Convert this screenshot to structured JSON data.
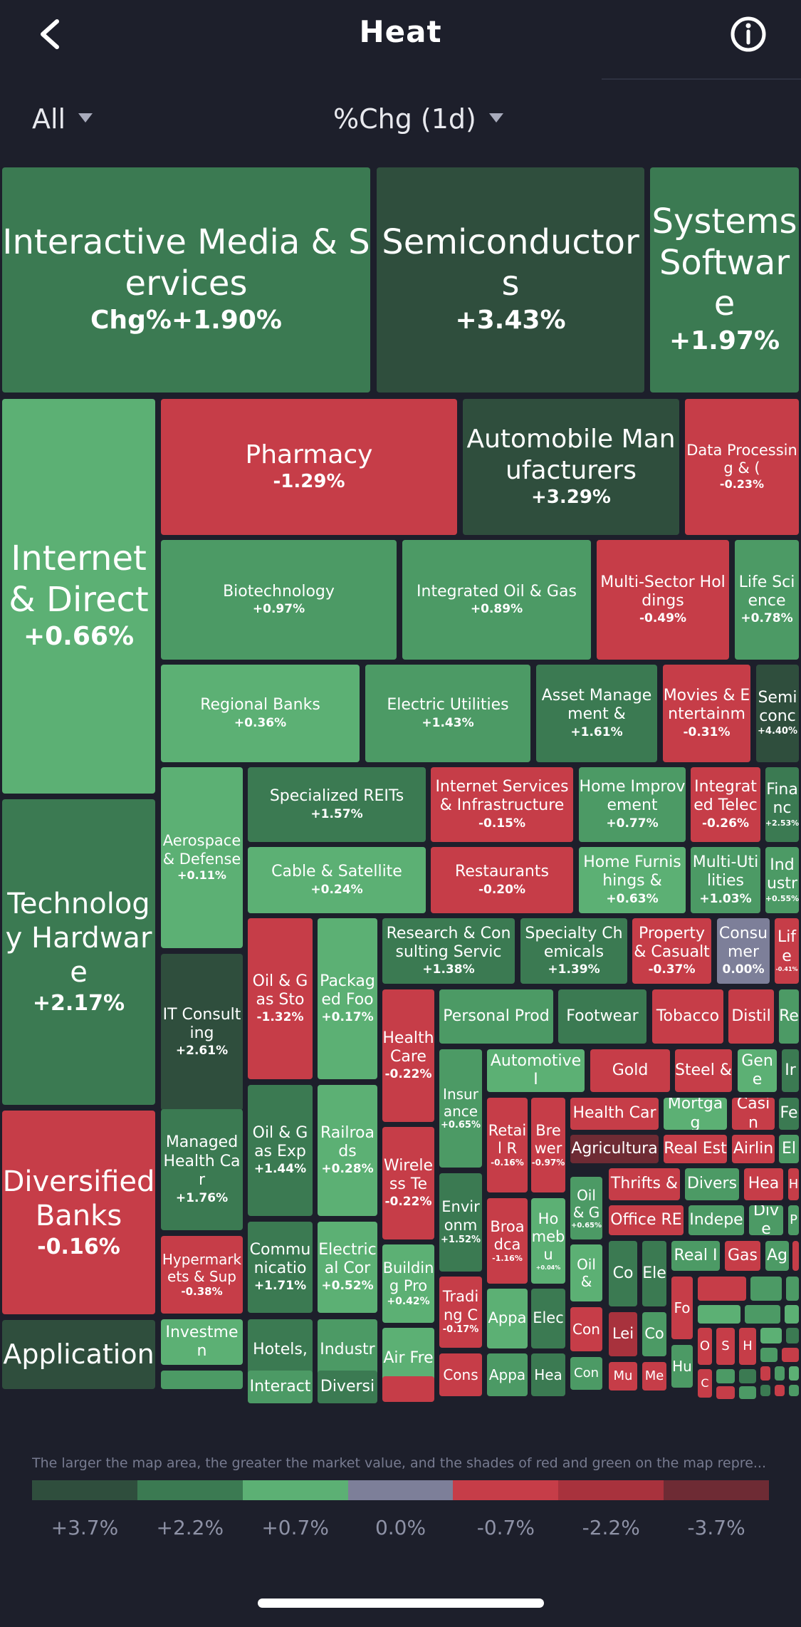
{
  "header": {
    "title": "Heat",
    "back_icon": "chevron-left-icon",
    "info_icon": "info-circle-icon"
  },
  "filters": {
    "scope": "All",
    "metric": "%Chg (1d)"
  },
  "heatmap": {
    "cells": [
      {
        "name": "Interactive Media & Services",
        "change": "Chg%+1.90%",
        "color": "#3b7a52"
      },
      {
        "name": "Semiconductors",
        "change": "+3.43%",
        "color": "#2f4e3d"
      },
      {
        "name": "Systems Software",
        "change": "+1.97%",
        "color": "#3b7a52"
      },
      {
        "name": "Internet & Direct",
        "change": "+0.66%",
        "color": "#5cb074"
      },
      {
        "name": "Pharmacy",
        "change": "-1.29%",
        "color": "#c63d48"
      },
      {
        "name": "Automobile Manufacturers",
        "change": "+3.29%",
        "color": "#2f4e3d"
      },
      {
        "name": "Data Processing & (",
        "change": "-0.23%",
        "color": "#c63d48"
      },
      {
        "name": "Biotechnology",
        "change": "+0.97%",
        "color": "#4c9a65"
      },
      {
        "name": "Integrated Oil & Gas",
        "change": "+0.89%",
        "color": "#4c9a65"
      },
      {
        "name": "Multi-Sector Holdings",
        "change": "-0.49%",
        "color": "#c63d48"
      },
      {
        "name": "Life Science",
        "change": "+0.78%",
        "color": "#4c9a65"
      },
      {
        "name": "Regional Banks",
        "change": "+0.36%",
        "color": "#5cb074"
      },
      {
        "name": "Electric Utilities",
        "change": "+1.43%",
        "color": "#4c9a65"
      },
      {
        "name": "Asset Management &",
        "change": "+1.61%",
        "color": "#3b7a52"
      },
      {
        "name": "Movies & Entertainm",
        "change": "-0.31%",
        "color": "#c63d48"
      },
      {
        "name": "Semiconc",
        "change": "+4.40%",
        "color": "#2f4e3d"
      },
      {
        "name": "Technology Hardware",
        "change": "+2.17%",
        "color": "#3b7a52"
      },
      {
        "name": "Aerospace & Defense",
        "change": "+0.11%",
        "color": "#5cb074"
      },
      {
        "name": "Specialized REITs",
        "change": "+1.57%",
        "color": "#3b7a52"
      },
      {
        "name": "Internet Services & Infrastructure",
        "change": "-0.15%",
        "color": "#c63d48"
      },
      {
        "name": "Home Improvement",
        "change": "+0.77%",
        "color": "#4c9a65"
      },
      {
        "name": "Integrated Telec",
        "change": "-0.26%",
        "color": "#c63d48"
      },
      {
        "name": "Financ",
        "change": "+2.53%",
        "color": "#3b7a52"
      },
      {
        "name": "Cable & Satellite",
        "change": "+0.24%",
        "color": "#5cb074"
      },
      {
        "name": "Restaurants",
        "change": "-0.20%",
        "color": "#c63d48"
      },
      {
        "name": "Home Furnishings &",
        "change": "+0.63%",
        "color": "#5cb074"
      },
      {
        "name": "Multi-Utilities",
        "change": "+1.03%",
        "color": "#4c9a65"
      },
      {
        "name": "Industr",
        "change": "+0.55%",
        "color": "#4c9a65"
      },
      {
        "name": "IT Consulting",
        "change": "+2.61%",
        "color": "#2f4e3d"
      },
      {
        "name": "Oil & Gas Sto",
        "change": "-1.32%",
        "color": "#c63d48"
      },
      {
        "name": "Packaged Foo",
        "change": "+0.17%",
        "color": "#5cb074"
      },
      {
        "name": "Research & Consulting Servic",
        "change": "+1.38%",
        "color": "#3b7a52"
      },
      {
        "name": "Specialty Chemicals",
        "change": "+1.39%",
        "color": "#3b7a52"
      },
      {
        "name": "Property & Casualt",
        "change": "-0.37%",
        "color": "#c63d48"
      },
      {
        "name": "Consumer",
        "change": "0.00%",
        "color": "#7d7f99"
      },
      {
        "name": "Life",
        "change": "-0.41%",
        "color": "#c63d48"
      },
      {
        "name": "Diversified Banks",
        "change": "-0.16%",
        "color": "#c63d48"
      },
      {
        "name": "Managed Health Car",
        "change": "+1.76%",
        "color": "#3b7a52"
      },
      {
        "name": "Oil & Gas Exp",
        "change": "+1.44%",
        "color": "#3b7a52"
      },
      {
        "name": "Railroads",
        "change": "+0.28%",
        "color": "#5cb074"
      },
      {
        "name": "Health Care",
        "change": "-0.22%",
        "color": "#c63d48"
      },
      {
        "name": "Personal Prod",
        "change": "",
        "color": "#4c9a65"
      },
      {
        "name": "Footwear",
        "change": "",
        "color": "#3b7a52"
      },
      {
        "name": "Tobacco",
        "change": "",
        "color": "#c63d48"
      },
      {
        "name": "Distil",
        "change": "",
        "color": "#c63d48"
      },
      {
        "name": "Re",
        "change": "",
        "color": "#4c9a65"
      },
      {
        "name": "Insurance",
        "change": "+0.65%",
        "color": "#4c9a65"
      },
      {
        "name": "Automotive I",
        "change": "",
        "color": "#5cb074"
      },
      {
        "name": "Gold",
        "change": "",
        "color": "#c63d48"
      },
      {
        "name": "Steel &",
        "change": "",
        "color": "#c63d48"
      },
      {
        "name": "Gene",
        "change": "",
        "color": "#5cb074"
      },
      {
        "name": "Ir",
        "change": "",
        "color": "#3b7a52"
      },
      {
        "name": "Hypermarkets & Sup",
        "change": "-0.38%",
        "color": "#c63d48"
      },
      {
        "name": "Communicatio",
        "change": "+1.71%",
        "color": "#3b7a52"
      },
      {
        "name": "Electrical Cor",
        "change": "+0.52%",
        "color": "#5cb074"
      },
      {
        "name": "Wireless Te",
        "change": "-0.22%",
        "color": "#c63d48"
      },
      {
        "name": "Retail R",
        "change": "-0.16%",
        "color": "#c63d48"
      },
      {
        "name": "Brewer",
        "change": "-0.97%",
        "color": "#c63d48"
      },
      {
        "name": "Health Car",
        "change": "",
        "color": "#c63d48"
      },
      {
        "name": "Mortgag",
        "change": "",
        "color": "#5cb074"
      },
      {
        "name": "Casin",
        "change": "",
        "color": "#c63d48"
      },
      {
        "name": "Fe",
        "change": "",
        "color": "#3b7a52"
      },
      {
        "name": "Agricultura",
        "change": "",
        "color": "#6e2b34"
      },
      {
        "name": "Real Est",
        "change": "",
        "color": "#c63d48"
      },
      {
        "name": "Airlin",
        "change": "",
        "color": "#c63d48"
      },
      {
        "name": "El",
        "change": "",
        "color": "#4c9a65"
      },
      {
        "name": "Oil & G",
        "change": "+0.65%",
        "color": "#4c9a65"
      },
      {
        "name": "Thrifts &",
        "change": "",
        "color": "#c63d48"
      },
      {
        "name": "Divers",
        "change": "",
        "color": "#4c9a65"
      },
      {
        "name": "Hea",
        "change": "",
        "color": "#c63d48"
      },
      {
        "name": "H",
        "change": "",
        "color": "#c63d48"
      },
      {
        "name": "Environm",
        "change": "+1.52%",
        "color": "#3b7a52"
      },
      {
        "name": "Broadca",
        "change": "-1.16%",
        "color": "#c63d48"
      },
      {
        "name": "Homebu",
        "change": "+0.04%",
        "color": "#5cb074"
      },
      {
        "name": "Office RE",
        "change": "",
        "color": "#c63d48"
      },
      {
        "name": "Indepe",
        "change": "",
        "color": "#4c9a65"
      },
      {
        "name": "Dive",
        "change": "",
        "color": "#4c9a65"
      },
      {
        "name": "P",
        "change": "",
        "color": "#4c9a65"
      },
      {
        "name": "Building Pro",
        "change": "+0.42%",
        "color": "#5cb074"
      },
      {
        "name": "Oil &",
        "change": "",
        "color": "#5cb074"
      },
      {
        "name": "Co",
        "change": "",
        "color": "#3b7a52"
      },
      {
        "name": "Ele",
        "change": "",
        "color": "#3b7a52"
      },
      {
        "name": "Real I",
        "change": "",
        "color": "#4c9a65"
      },
      {
        "name": "Gas",
        "change": "",
        "color": "#c63d48"
      },
      {
        "name": "Ag",
        "change": "",
        "color": "#4c9a65"
      },
      {
        "name": "Investmen",
        "change": "",
        "color": "#5cb074"
      },
      {
        "name": "Hotels,",
        "change": "",
        "color": "#3b7a52"
      },
      {
        "name": "Industr",
        "change": "",
        "color": "#4c9a65"
      },
      {
        "name": "Air Fre",
        "change": "",
        "color": "#5cb074"
      },
      {
        "name": "Trading C",
        "change": "-0.17%",
        "color": "#c63d48"
      },
      {
        "name": "Appa",
        "change": "",
        "color": "#5cb074"
      },
      {
        "name": "Elec",
        "change": "",
        "color": "#3b7a52"
      },
      {
        "name": "Fo",
        "change": "",
        "color": "#c63d48"
      },
      {
        "name": "Con",
        "change": "",
        "color": "#c63d48"
      },
      {
        "name": "Lei",
        "change": "",
        "color": "#a8323d"
      },
      {
        "name": "Co",
        "change": "",
        "color": "#4c9a65"
      },
      {
        "name": "Hu",
        "change": "",
        "color": "#4c9a65"
      },
      {
        "name": "O",
        "change": "",
        "color": "#c63d48"
      },
      {
        "name": "S",
        "change": "",
        "color": "#c63d48"
      },
      {
        "name": "H",
        "change": "",
        "color": "#c63d48"
      },
      {
        "name": "Application",
        "change": "",
        "color": "#2f4e3d"
      },
      {
        "name": "Interact",
        "change": "",
        "color": "#4c9a65"
      },
      {
        "name": "Diversi",
        "change": "",
        "color": "#3b7a52"
      },
      {
        "name": "Cons",
        "change": "",
        "color": "#c63d48"
      },
      {
        "name": "Appa",
        "change": "",
        "color": "#4c9a65"
      },
      {
        "name": "Hea",
        "change": "",
        "color": "#3b7a52"
      },
      {
        "name": "Con",
        "change": "",
        "color": "#4c9a65"
      },
      {
        "name": "Mu",
        "change": "",
        "color": "#c63d48"
      },
      {
        "name": "Me",
        "change": "",
        "color": "#c63d48"
      },
      {
        "name": "C",
        "change": "",
        "color": "#c63d48"
      }
    ]
  },
  "legend": {
    "note": "The larger the map area, the greater the market value, and the shades of red and green on the map repre...",
    "scale": [
      {
        "label": "+3.7%",
        "color": "#2f4e3d"
      },
      {
        "label": "+2.2%",
        "color": "#3b7a52"
      },
      {
        "label": "+0.7%",
        "color": "#5cb074"
      },
      {
        "label": "0.0%",
        "color": "#7d7f99"
      },
      {
        "label": "-0.7%",
        "color": "#c63d48"
      },
      {
        "label": "-2.2%",
        "color": "#a8323d"
      },
      {
        "label": "-3.7%",
        "color": "#6e2b34"
      }
    ]
  }
}
